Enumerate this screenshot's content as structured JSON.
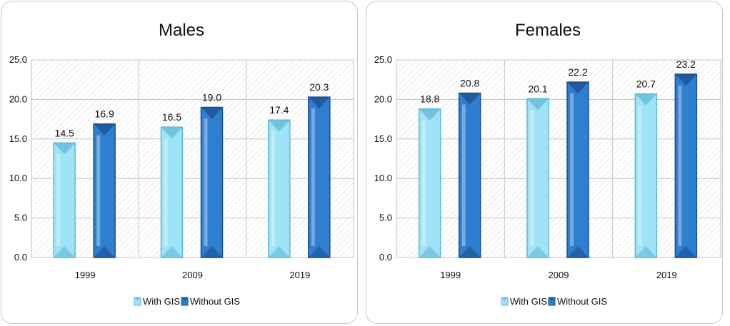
{
  "chart_data": [
    {
      "type": "bar",
      "title": "Males",
      "categories": [
        "1999",
        "2009",
        "2019"
      ],
      "series": [
        {
          "name": "With GIS",
          "values": [
            14.5,
            16.5,
            17.4
          ]
        },
        {
          "name": "Without GIS",
          "values": [
            16.9,
            19.0,
            20.3
          ]
        }
      ],
      "ylim": [
        0,
        25
      ],
      "yticks": [
        "0.0",
        "5.0",
        "10.0",
        "15.0",
        "20.0",
        "25.0"
      ],
      "data_labels": [
        [
          "14.5",
          "16.5",
          "17.4"
        ],
        [
          "16.9",
          "19.0",
          "20.3"
        ]
      ],
      "legend": "bottom",
      "grid": true
    },
    {
      "type": "bar",
      "title": "Females",
      "categories": [
        "1999",
        "2009",
        "2019"
      ],
      "series": [
        {
          "name": "With GIS",
          "values": [
            18.8,
            20.1,
            20.7
          ]
        },
        {
          "name": "Without GIS",
          "values": [
            20.8,
            22.2,
            23.2
          ]
        }
      ],
      "ylim": [
        0,
        25
      ],
      "yticks": [
        "0.0",
        "5.0",
        "10.0",
        "15.0",
        "20.0",
        "25.0"
      ],
      "data_labels": [
        [
          "18.8",
          "20.1",
          "20.7"
        ],
        [
          "20.8",
          "22.2",
          "23.2"
        ]
      ],
      "legend": "bottom",
      "grid": true
    }
  ],
  "colors": {
    "with_gis": "#9fe3f6",
    "with_gis_edge": "#5fb8d8",
    "without_gis": "#2f7fd0",
    "without_gis_edge": "#1a4f8f"
  }
}
